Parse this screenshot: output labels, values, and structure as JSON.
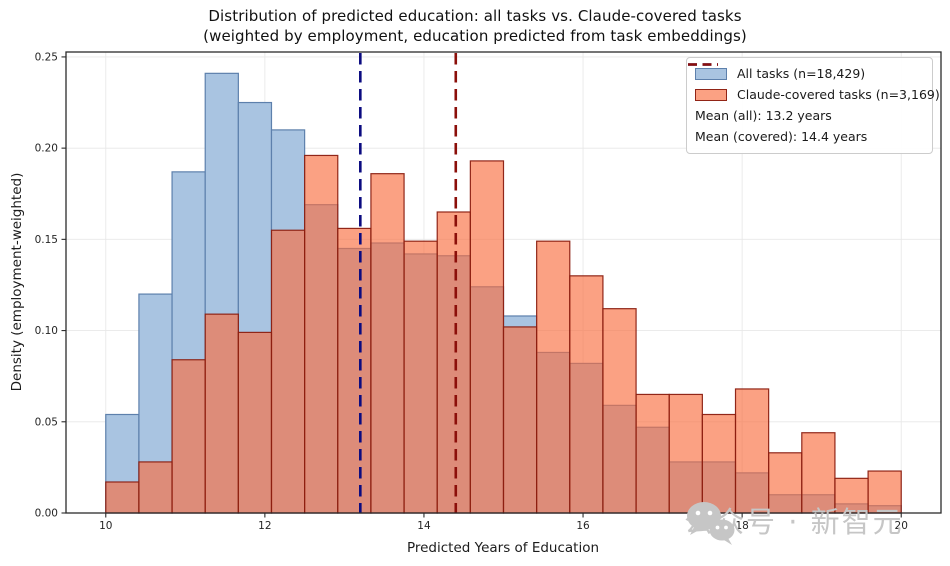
{
  "figure": {
    "title": "Distribution of predicted education: all tasks vs. Claude-covered tasks",
    "subtitle": "(weighted by employment, education predicted from task embeddings)"
  },
  "watermark": {
    "text": "公众号 · 新智元"
  },
  "chart_data": {
    "type": "bar",
    "subtype": "overlaid-histogram",
    "title": "Distribution of predicted education: all tasks vs. Claude-covered tasks",
    "subtitle": "(weighted by employment, education predicted from task embeddings)",
    "xlabel": "Predicted Years of Education",
    "ylabel": "Density (employment-weighted)",
    "xlim": [
      9.5,
      20.5
    ],
    "ylim": [
      0,
      0.2527
    ],
    "xticks": [
      10,
      12,
      14,
      16,
      18,
      20
    ],
    "yticks": [
      0.0,
      0.05,
      0.1,
      0.15,
      0.2,
      0.25
    ],
    "grid": true,
    "legend_position": "upper right",
    "bin_start": 10.0,
    "bin_width": 0.41667,
    "n_bins": 24,
    "series": [
      {
        "name": "All tasks (n=18,429)",
        "fill": "#a9c4e1",
        "edge": "#5d80ac",
        "values": [
          0.054,
          0.12,
          0.187,
          0.241,
          0.225,
          0.21,
          0.169,
          0.145,
          0.148,
          0.142,
          0.141,
          0.124,
          0.108,
          0.088,
          0.082,
          0.059,
          0.047,
          0.028,
          0.028,
          0.022,
          0.01,
          0.01,
          0.005,
          0.004
        ]
      },
      {
        "name": "Claude-covered tasks (n=3,169)",
        "fill": "rgba(249,110,64,0.65)",
        "edge": "rgba(139,30,16,0.95)",
        "values": [
          0.017,
          0.028,
          0.084,
          0.109,
          0.099,
          0.155,
          0.196,
          0.156,
          0.186,
          0.149,
          0.165,
          0.193,
          0.102,
          0.149,
          0.13,
          0.112,
          0.065,
          0.065,
          0.054,
          0.068,
          0.033,
          0.044,
          0.019,
          0.023
        ]
      }
    ],
    "mean_lines": [
      {
        "label": "Mean (all): 13.2 years",
        "value": 13.2,
        "color": "#0b0b80"
      },
      {
        "label": "Mean (covered): 14.4 years",
        "value": 14.4,
        "color": "#8b0f0a"
      }
    ]
  },
  "colors": {
    "grid": "#e8e8e8",
    "spine": "#2b2b2b",
    "tick_text": "#262626",
    "watermark": "#c6c6c6"
  }
}
